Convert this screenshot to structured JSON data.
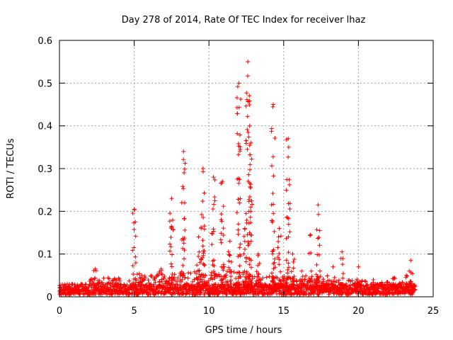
{
  "chart_data": {
    "type": "scatter",
    "title": "Day 278 of 2014, Rate Of TEC Index for receiver lhaz",
    "xlabel": "GPS time / hours",
    "ylabel": "ROTI / TECUs",
    "xlim": [
      0,
      25
    ],
    "ylim": [
      0,
      0.6
    ],
    "xticks": [
      0,
      5,
      10,
      15,
      20,
      25
    ],
    "yticks": [
      0,
      0.1,
      0.2,
      0.3,
      0.4,
      0.5,
      0.6
    ],
    "grid": true,
    "marker": "+",
    "color": "#ff0000",
    "baseline": {
      "x_start": 0,
      "x_end": 23.8,
      "typical_range": [
        0.005,
        0.03
      ],
      "segments": [
        {
          "x": [
            0,
            2
          ],
          "max": 0.02
        },
        {
          "x": [
            2,
            5
          ],
          "max": 0.045
        },
        {
          "x": [
            5,
            8
          ],
          "max": 0.055
        },
        {
          "x": [
            8,
            13
          ],
          "max": 0.06
        },
        {
          "x": [
            13,
            18
          ],
          "max": 0.05
        },
        {
          "x": [
            18,
            21
          ],
          "max": 0.04
        },
        {
          "x": [
            21,
            23.8
          ],
          "max": 0.035
        }
      ]
    },
    "spikes": [
      {
        "x": 2.4,
        "peak": 0.065
      },
      {
        "x": 5.0,
        "peak": 0.205
      },
      {
        "x": 5.5,
        "peak": 0.05
      },
      {
        "x": 6.8,
        "peak": 0.065
      },
      {
        "x": 7.5,
        "peak": 0.23
      },
      {
        "x": 8.3,
        "peak": 0.34
      },
      {
        "x": 9.3,
        "peak": 0.14
      },
      {
        "x": 9.6,
        "peak": 0.3
      },
      {
        "x": 10.3,
        "peak": 0.28
      },
      {
        "x": 10.9,
        "peak": 0.27
      },
      {
        "x": 11.4,
        "peak": 0.13
      },
      {
        "x": 12.0,
        "peak": 0.5
      },
      {
        "x": 12.4,
        "peak": 0.16
      },
      {
        "x": 12.6,
        "peak": 0.55
      },
      {
        "x": 12.8,
        "peak": 0.36
      },
      {
        "x": 13.3,
        "peak": 0.1
      },
      {
        "x": 14.3,
        "peak": 0.45
      },
      {
        "x": 14.7,
        "peak": 0.16
      },
      {
        "x": 15.3,
        "peak": 0.37
      },
      {
        "x": 15.6,
        "peak": 0.1
      },
      {
        "x": 16.2,
        "peak": 0.06
      },
      {
        "x": 16.8,
        "peak": 0.145
      },
      {
        "x": 17.3,
        "peak": 0.215
      },
      {
        "x": 18.3,
        "peak": 0.07
      },
      {
        "x": 18.9,
        "peak": 0.105
      },
      {
        "x": 20.0,
        "peak": 0.07
      },
      {
        "x": 21.0,
        "peak": 0.04
      },
      {
        "x": 22.4,
        "peak": 0.045
      },
      {
        "x": 23.2,
        "peak": 0.05
      },
      {
        "x": 23.5,
        "peak": 0.085
      }
    ]
  }
}
